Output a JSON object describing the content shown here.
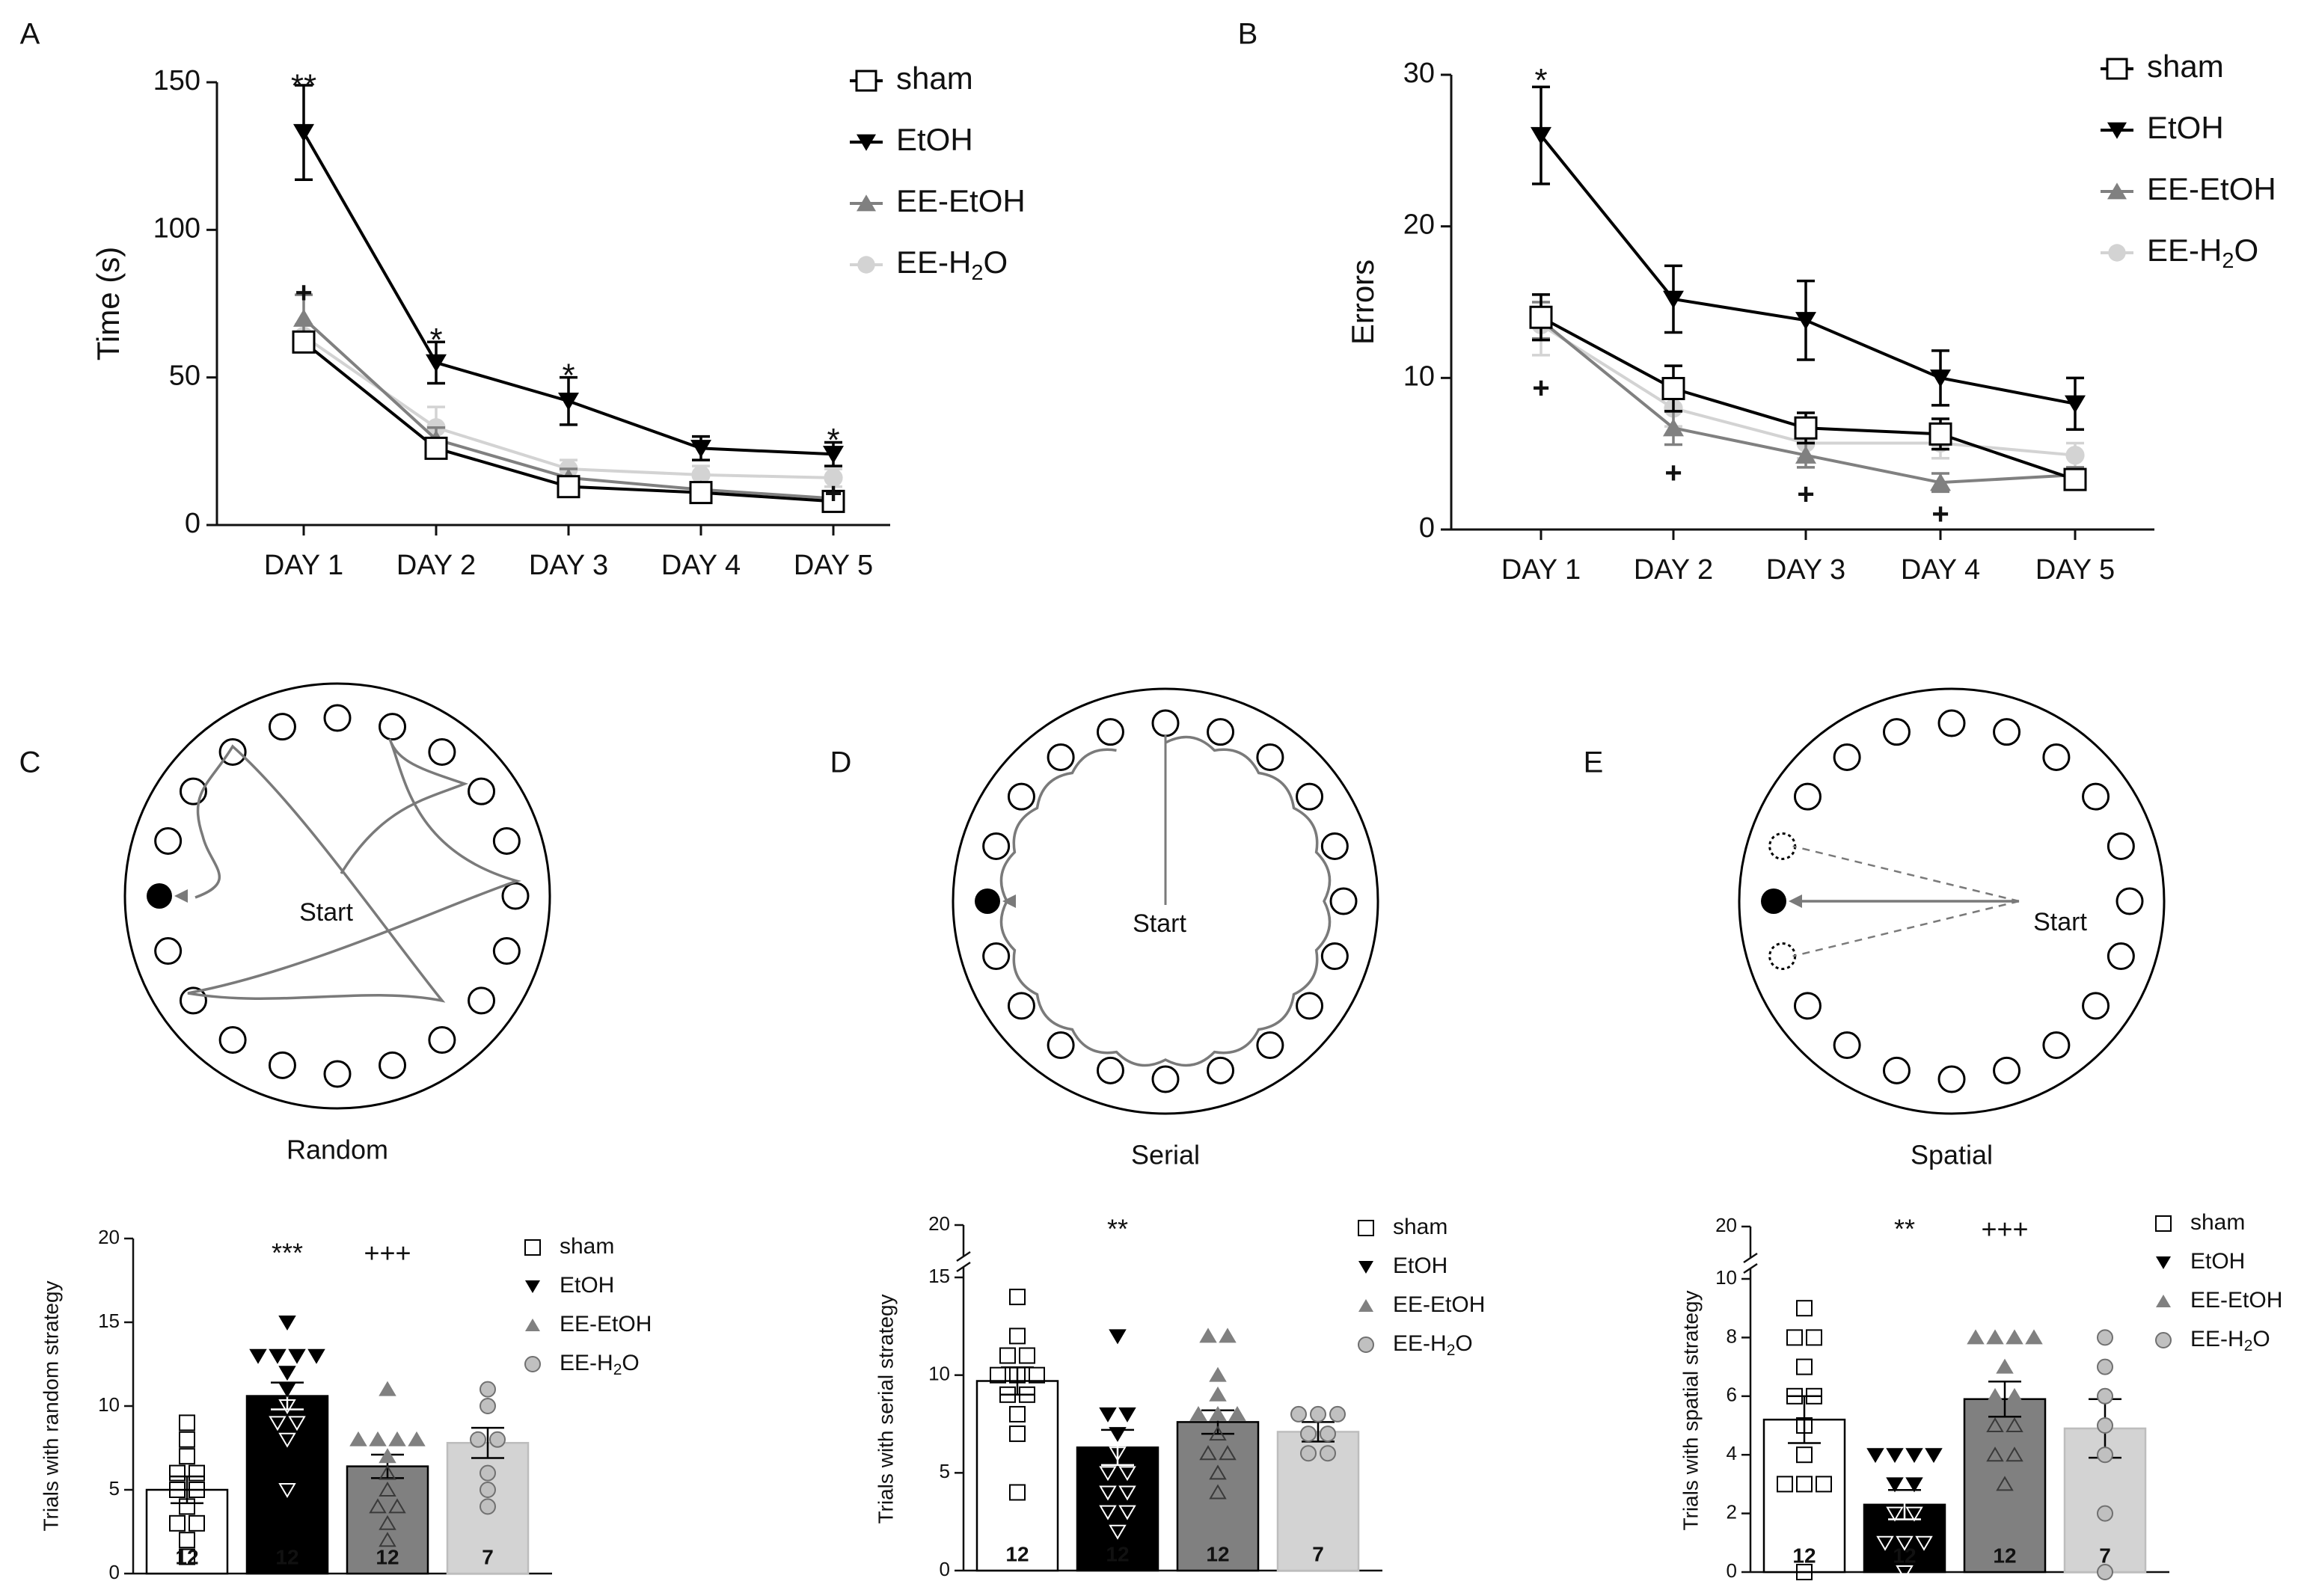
{
  "figure": {
    "panel_labels": [
      "A",
      "B",
      "C",
      "D",
      "E"
    ],
    "legend_long": [
      "sham",
      "EtOH",
      "EE-EtOH",
      "EE-H₂O"
    ],
    "legend_short": [
      "sham",
      "EtOH",
      "EE-EtOH",
      "EE-H₂O"
    ]
  },
  "colors": {
    "sham": "#ffffff",
    "etoh": "#000000",
    "ee_etoh": "#808080",
    "ee_h2o": "#d3d3d3",
    "path": "#7a7a7a",
    "axis": "#111111"
  },
  "mazes": [
    {
      "panel": "C",
      "title": "Random",
      "start": "Start"
    },
    {
      "panel": "D",
      "title": "Serial",
      "start": "Start"
    },
    {
      "panel": "E",
      "title": "Spatial",
      "start": "Start"
    }
  ],
  "chart_data": [
    {
      "panel": "A",
      "type": "line",
      "categories": [
        "DAY 1",
        "DAY 2",
        "DAY 3",
        "DAY 4",
        "DAY 5"
      ],
      "ylabel": "Time (s)",
      "ylim": [
        0,
        150
      ],
      "yticks": [
        0,
        50,
        100,
        150
      ],
      "series": [
        {
          "name": "sham",
          "marker": "square-open",
          "values": [
            62,
            26,
            13,
            11,
            8
          ],
          "errors": [
            3,
            3,
            2,
            2,
            2
          ]
        },
        {
          "name": "EtOH",
          "marker": "triangle-down",
          "values": [
            133,
            55,
            42,
            26,
            24
          ],
          "errors": [
            16,
            7,
            8,
            4,
            4
          ]
        },
        {
          "name": "EE-EtOH",
          "marker": "triangle-up",
          "values": [
            70,
            29,
            16,
            12,
            9
          ],
          "errors": [
            8,
            4,
            3,
            2,
            2
          ]
        },
        {
          "name": "EE-H₂O",
          "marker": "circle",
          "values": [
            64,
            33,
            19,
            17,
            16
          ],
          "errors": [
            4,
            7,
            3,
            3,
            3
          ]
        }
      ],
      "annotations": [
        {
          "day": 0,
          "y": 148,
          "text": "**"
        },
        {
          "day": 0,
          "y": 78,
          "text": "+"
        },
        {
          "day": 1,
          "y": 62,
          "text": "*"
        },
        {
          "day": 2,
          "y": 50,
          "text": "*"
        },
        {
          "day": 4,
          "y": 28,
          "text": "*"
        },
        {
          "day": 4,
          "y": 10,
          "text": "+"
        }
      ]
    },
    {
      "panel": "B",
      "type": "line",
      "categories": [
        "DAY 1",
        "DAY 2",
        "DAY 3",
        "DAY 4",
        "DAY 5"
      ],
      "ylabel": "Errors",
      "ylim": [
        0,
        30
      ],
      "yticks": [
        0,
        10,
        20,
        30
      ],
      "series": [
        {
          "name": "sham",
          "marker": "square-open",
          "values": [
            14,
            9.3,
            6.7,
            6.3,
            3.3
          ],
          "errors": [
            1.5,
            1.5,
            1,
            1,
            0.5
          ]
        },
        {
          "name": "EtOH",
          "marker": "triangle-down",
          "values": [
            26,
            15.2,
            13.8,
            10,
            8.3
          ],
          "errors": [
            3.2,
            2.2,
            2.6,
            1.8,
            1.7
          ]
        },
        {
          "name": "EE-EtOH",
          "marker": "triangle-up",
          "values": [
            13.8,
            6.7,
            4.9,
            3.1,
            3.6
          ],
          "errors": [
            1.2,
            1.1,
            0.8,
            0.6,
            0.5
          ]
        },
        {
          "name": "EE-H₂O",
          "marker": "circle",
          "values": [
            13.5,
            8,
            5.7,
            5.7,
            4.9
          ],
          "errors": [
            2,
            1.2,
            1,
            1,
            0.8
          ]
        }
      ],
      "annotations": [
        {
          "day": 0,
          "y": 29.5,
          "text": "*"
        },
        {
          "day": 0,
          "y": 9.2,
          "text": "+"
        },
        {
          "day": 1,
          "y": 3.6,
          "text": "+"
        },
        {
          "day": 2,
          "y": 2.2,
          "text": "+"
        },
        {
          "day": 3,
          "y": 0.9,
          "text": "+"
        }
      ]
    },
    {
      "panel": "C",
      "type": "bar",
      "categories": [
        "sham",
        "EtOH",
        "EE-EtOH",
        "EE-H₂O"
      ],
      "ylabel": "Trials with random strategy",
      "ylim": [
        0,
        20
      ],
      "yticks": [
        0,
        5,
        10,
        15,
        20
      ],
      "values": [
        5,
        10.6,
        6.4,
        7.8
      ],
      "errors": [
        0.8,
        0.8,
        0.7,
        0.9
      ],
      "n": [
        "12",
        "12",
        "12",
        "7"
      ],
      "points": [
        [
          9,
          8,
          7,
          6,
          6,
          5,
          5,
          4,
          3,
          3,
          2,
          1
        ],
        [
          15,
          13,
          13,
          13,
          13,
          12,
          11,
          10,
          9,
          9,
          8,
          5
        ],
        [
          11,
          8,
          8,
          8,
          8,
          7,
          6,
          5,
          4,
          4,
          3,
          2
        ],
        [
          11,
          10,
          8,
          8,
          6,
          5,
          4
        ]
      ],
      "annotations": [
        {
          "bar": 1,
          "text": "***"
        },
        {
          "bar": 2,
          "text": "+++"
        }
      ]
    },
    {
      "panel": "D",
      "type": "bar",
      "categories": [
        "sham",
        "EtOH",
        "EE-EtOH",
        "EE-H₂O"
      ],
      "ylabel": "Trials with serial strategy",
      "ylim": [
        0,
        15
      ],
      "yticks": [
        0,
        5,
        10,
        15
      ],
      "axis_break_top": 20,
      "values": [
        9.7,
        6.3,
        7.6,
        7.1
      ],
      "errors": [
        0.7,
        0.9,
        0.6,
        0.5
      ],
      "n": [
        "12",
        "12",
        "12",
        "7"
      ],
      "points": [
        [
          14,
          12,
          11,
          11,
          10,
          10,
          10,
          9,
          9,
          8,
          7,
          4
        ],
        [
          12,
          8,
          8,
          7,
          6,
          5,
          5,
          4,
          4,
          3,
          3,
          2
        ],
        [
          12,
          12,
          10,
          9,
          8,
          8,
          8,
          7,
          6,
          6,
          5,
          4
        ],
        [
          8,
          8,
          8,
          7,
          7,
          6,
          6
        ]
      ],
      "annotations": [
        {
          "bar": 1,
          "text": "**"
        }
      ]
    },
    {
      "panel": "E",
      "type": "bar",
      "categories": [
        "sham",
        "EtOH",
        "EE-EtOH",
        "EE-H₂O"
      ],
      "ylabel": "Trials with spatial strategy",
      "ylim": [
        0,
        10
      ],
      "yticks": [
        0,
        2,
        4,
        6,
        8,
        10
      ],
      "axis_break_top": 20,
      "values": [
        5.2,
        2.3,
        5.9,
        4.9
      ],
      "errors": [
        0.8,
        0.5,
        0.6,
        1.0
      ],
      "n": [
        "12",
        "12",
        "12",
        "7"
      ],
      "points": [
        [
          9,
          8,
          8,
          7,
          6,
          6,
          5,
          4,
          3,
          3,
          3,
          0
        ],
        [
          4,
          4,
          4,
          4,
          3,
          3,
          2,
          2,
          1,
          1,
          1,
          0
        ],
        [
          8,
          8,
          8,
          8,
          7,
          6,
          6,
          5,
          5,
          4,
          4,
          3
        ],
        [
          8,
          7,
          6,
          5,
          4,
          2,
          0
        ]
      ],
      "annotations": [
        {
          "bar": 1,
          "text": "**"
        },
        {
          "bar": 2,
          "text": "+++"
        }
      ]
    }
  ]
}
